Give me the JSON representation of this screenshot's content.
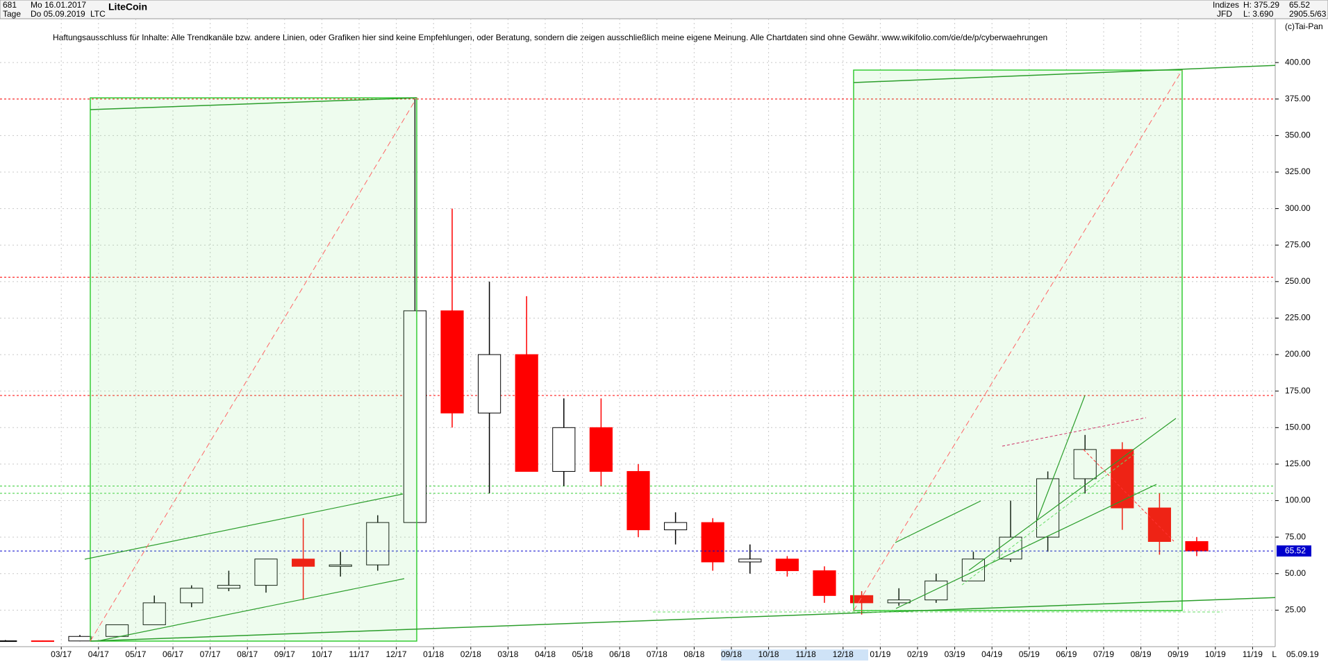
{
  "header": {
    "count": "681",
    "start_date": "Mo 16.01.2017",
    "period": "Tage",
    "end_date": "Do 05.09.2019",
    "name": "LiteCoin",
    "symbol": "LTC",
    "group": "Indizes",
    "broker": "JFD",
    "high": "H: 375.29",
    "low": "L: 3.690",
    "counter": "2905.5/63",
    "copyright": "(c)Tai-Pan",
    "disclaimer": "Haftungsausschluss für Inhalte: Alle Trendkanäle bzw. andere Linien, oder Grafiken hier sind keine Empfehlungen, oder Beratung, sondern die zeigen ausschließlich meine eigene Meinung. Alle Chartdaten sind ohne Gewähr.  www.wikifolio.com/de/de/p/cyberwaehrungen",
    "footer_date": "05.09.19",
    "footer_scale": "L"
  },
  "chart_data": {
    "type": "candlestick",
    "categories": [
      null,
      null,
      "03/17",
      "04/17",
      "05/17",
      "06/17",
      "07/17",
      "08/17",
      "09/17",
      "10/17",
      "11/17",
      "12/17",
      "01/18",
      "02/18",
      "03/18",
      "04/18",
      "05/18",
      "06/18",
      "07/18",
      "08/18",
      "09/18",
      "10/18",
      "11/18",
      "12/18",
      "01/19",
      "02/19",
      "03/19",
      "04/19",
      "05/19",
      "06/19",
      "07/19",
      "08/19",
      "09/19",
      "10/19",
      "11/19"
    ],
    "open": [
      4,
      4,
      3.9,
      7,
      15,
      30,
      40,
      42,
      60,
      55,
      56,
      85,
      230,
      160,
      200,
      120,
      150,
      120,
      80,
      85,
      58,
      60,
      52,
      35,
      30,
      32,
      45,
      60,
      75,
      115,
      135,
      95,
      72,
      null,
      null
    ],
    "high": [
      4.5,
      4.2,
      8,
      15,
      35,
      42,
      52,
      60,
      88,
      65,
      90,
      375,
      300,
      250,
      240,
      170,
      170,
      125,
      92,
      88,
      70,
      62,
      55,
      38,
      40,
      50,
      65,
      100,
      120,
      145,
      140,
      105,
      75,
      null,
      null
    ],
    "low": [
      3.7,
      3.7,
      3.7,
      6.5,
      15,
      27,
      38,
      37,
      32,
      48,
      52,
      85,
      150,
      105,
      120,
      110,
      110,
      75,
      70,
      52,
      50,
      48,
      30,
      22,
      28,
      30,
      45,
      58,
      65,
      105,
      80,
      63,
      62,
      null,
      null
    ],
    "close": [
      4,
      3.9,
      7,
      15,
      30,
      40,
      42,
      60,
      55,
      56,
      85,
      230,
      160,
      200,
      120,
      150,
      120,
      80,
      85,
      58,
      60,
      52,
      35,
      30,
      32,
      45,
      60,
      75,
      115,
      135,
      95,
      72,
      65.52,
      null,
      null
    ],
    "up_color": "#000000",
    "down_color": "#ff0000",
    "last_price": 65.52,
    "last_price_color": "#0000cc",
    "hlines": [
      {
        "value": 375,
        "color": "#ff0000"
      },
      {
        "value": 253,
        "color": "#ff0000"
      },
      {
        "value": 172,
        "color": "#ff0000"
      },
      {
        "value": 110,
        "color": "#33cc33"
      },
      {
        "value": 105,
        "color": "#33cc33"
      }
    ],
    "ylim": [
      0,
      430
    ],
    "yticks": [
      {
        "value": 25,
        "label": "25.00"
      },
      {
        "value": 50,
        "label": "50.00"
      },
      {
        "value": 75,
        "label": "75.00"
      },
      {
        "value": 100,
        "label": "100.00"
      },
      {
        "value": 125,
        "label": "125.00"
      },
      {
        "value": 150,
        "label": "150.00"
      },
      {
        "value": 175,
        "label": "175.00"
      },
      {
        "value": 200,
        "label": "200.00"
      },
      {
        "value": 225,
        "label": "225.00"
      },
      {
        "value": 250,
        "label": "250.00"
      },
      {
        "value": 275,
        "label": "275.00"
      },
      {
        "value": 300,
        "label": "300.00"
      },
      {
        "value": 325,
        "label": "325.00"
      },
      {
        "value": 350,
        "label": "350.00"
      },
      {
        "value": 375,
        "label": "375.00"
      },
      {
        "value": 400,
        "label": "400.00"
      }
    ],
    "grid": true
  }
}
